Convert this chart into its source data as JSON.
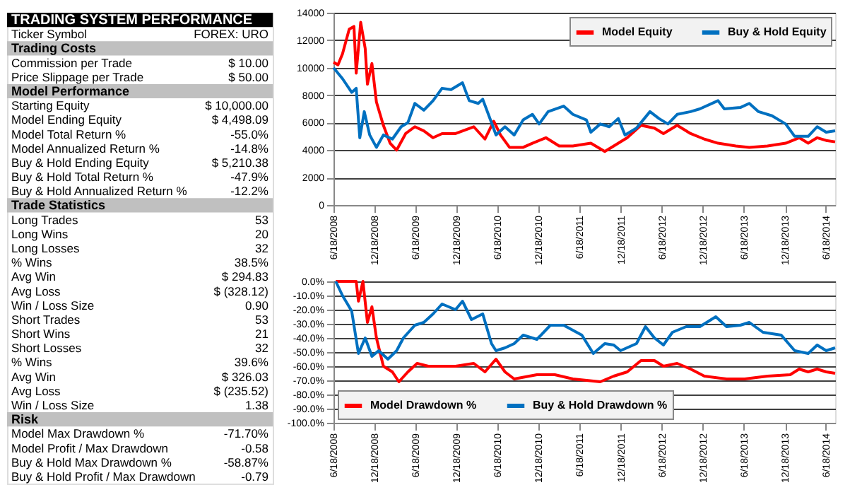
{
  "chart_data": [
    {
      "type": "other",
      "title": "TRADING SYSTEM PERFORMANCE",
      "categories": [
        "Ticker Symbol",
        "Trading Costs",
        "Commission per Trade",
        "Price Slippage per Trade",
        "Model Performance",
        "Starting Equity",
        "Model Ending Equity",
        "Model Total Return %",
        "Model Annualized Return %",
        "Buy & Hold Ending Equity",
        "Buy & Hold Total Return %",
        "Buy & Hold Annualized Return %",
        "Trade Statistics",
        "Long Trades",
        "Long Wins",
        "Long Losses",
        "% Wins",
        "Avg Win",
        "Avg Loss",
        "Win / Loss Size",
        "Short Trades",
        "Short Wins",
        "Short Losses",
        "% Wins",
        "Avg Win",
        "Avg Loss",
        "Win / Loss Size",
        "Risk",
        "Model Max Drawdown %",
        "Model Profit / Max Drawdown",
        "Buy & Hold Max Drawdown %",
        "Buy & Hold Profit / Max Drawdown"
      ],
      "value_labels": [
        "FOREX: URO",
        null,
        "$ 10.00",
        "$ 50.00",
        null,
        "$ 10,000.00",
        "$ 4,498.09",
        "-55.0%",
        "-14.8%",
        "$ 5,210.38",
        "-47.9%",
        "-12.2%",
        null,
        "53",
        "20",
        "32",
        "38.5%",
        "$ 294.83",
        "$ (328.12)",
        "0.90",
        "53",
        "21",
        "32",
        "39.6%",
        "$ 326.03",
        "$ (235.52)",
        "1.38",
        null,
        "-71.70%",
        "-0.58",
        "-58.87%",
        "-0.79"
      ]
    },
    {
      "type": "line",
      "xlim": [
        "2008-06-18",
        "2014-07-29"
      ],
      "ylim": [
        0,
        14000
      ],
      "yticks": [
        0,
        2000,
        4000,
        6000,
        8000,
        10000,
        12000,
        14000
      ],
      "xticks": [
        {
          "value": "2008-06-18",
          "label": "6/18/2008"
        },
        {
          "value": "2008-12-18",
          "label": "12/18/2008"
        },
        {
          "value": "2009-06-18",
          "label": "6/18/2009"
        },
        {
          "value": "2009-12-18",
          "label": "12/18/2009"
        },
        {
          "value": "2010-06-18",
          "label": "6/18/2010"
        },
        {
          "value": "2010-12-18",
          "label": "12/18/2010"
        },
        {
          "value": "2011-06-18",
          "label": "6/18/2011"
        },
        {
          "value": "2011-12-18",
          "label": "12/18/2011"
        },
        {
          "value": "2012-06-18",
          "label": "6/18/2012"
        },
        {
          "value": "2012-12-18",
          "label": "12/18/2012"
        },
        {
          "value": "2013-06-18",
          "label": "6/18/2013"
        },
        {
          "value": "2013-12-18",
          "label": "12/18/2013"
        },
        {
          "value": "2014-06-18",
          "label": "6/18/2014"
        }
      ],
      "grid": "y",
      "legend": "top right",
      "series": [
        {
          "name": "Model Equity",
          "color": "#ff0000",
          "x": [
            "2008-06-18",
            "2008-07-08",
            "2008-07-28",
            "2008-08-27",
            "2008-09-17",
            "2008-09-27",
            "2008-10-17",
            "2008-11-06",
            "2008-11-16",
            "2008-12-06",
            "2008-12-26",
            "2009-01-26",
            "2009-02-25",
            "2009-03-26",
            "2009-05-05",
            "2009-06-15",
            "2009-07-25",
            "2009-09-04",
            "2009-10-14",
            "2009-12-13",
            "2010-03-04",
            "2010-04-23",
            "2010-06-01",
            "2010-07-01",
            "2010-08-10",
            "2010-10-10",
            "2010-11-20",
            "2011-01-19",
            "2011-03-19",
            "2011-05-19",
            "2011-08-07",
            "2011-10-08",
            "2011-11-17",
            "2012-01-16",
            "2012-03-17",
            "2012-05-16",
            "2012-06-25",
            "2012-08-25",
            "2012-10-24",
            "2012-12-24",
            "2013-02-23",
            "2013-05-13",
            "2013-07-12",
            "2013-10-01",
            "2013-12-21",
            "2014-02-19",
            "2014-03-31",
            "2014-05-10",
            "2014-06-19",
            "2014-07-29"
          ],
          "values": [
            10400,
            10200,
            11000,
            12800,
            13000,
            9600,
            13300,
            11400,
            8800,
            10300,
            7500,
            5800,
            4500,
            4000,
            5200,
            5700,
            5400,
            4900,
            5200,
            5200,
            5700,
            4800,
            6100,
            5100,
            4200,
            4200,
            4500,
            4900,
            4300,
            4300,
            4500,
            3900,
            4300,
            4900,
            5800,
            5600,
            5200,
            5800,
            5200,
            4800,
            4500,
            4300,
            4200,
            4300,
            4500,
            4900,
            4500,
            4900,
            4700,
            4600
          ]
        },
        {
          "name": "Buy & Hold Equity",
          "color": "#0070c0",
          "x": [
            "2008-06-18",
            "2008-07-28",
            "2008-09-07",
            "2008-09-27",
            "2008-10-13",
            "2008-11-02",
            "2008-11-26",
            "2008-12-26",
            "2009-01-26",
            "2009-03-07",
            "2009-04-15",
            "2009-05-15",
            "2009-06-15",
            "2009-07-25",
            "2009-09-04",
            "2009-10-14",
            "2009-11-23",
            "2010-01-13",
            "2010-02-12",
            "2010-03-24",
            "2010-04-13",
            "2010-05-22",
            "2010-06-11",
            "2010-07-21",
            "2010-08-31",
            "2010-10-10",
            "2010-11-20",
            "2010-12-20",
            "2011-01-29",
            "2011-04-08",
            "2011-05-19",
            "2011-07-18",
            "2011-08-07",
            "2011-09-18",
            "2011-10-28",
            "2011-12-07",
            "2012-01-06",
            "2012-02-26",
            "2012-04-26",
            "2012-06-05",
            "2012-07-15",
            "2012-08-25",
            "2012-10-24",
            "2012-12-04",
            "2013-02-23",
            "2013-03-23",
            "2013-06-02",
            "2013-07-12",
            "2013-08-22",
            "2013-10-21",
            "2013-12-21",
            "2014-01-30",
            "2014-03-31",
            "2014-05-10",
            "2014-06-19",
            "2014-07-29"
          ],
          "values": [
            10000,
            9200,
            8200,
            8500,
            4900,
            6800,
            5100,
            4200,
            5100,
            4800,
            5700,
            6000,
            7400,
            6900,
            7600,
            8500,
            8400,
            8900,
            7600,
            7400,
            7700,
            6000,
            5100,
            5700,
            5100,
            6200,
            6600,
            5900,
            6800,
            7200,
            6600,
            6200,
            5300,
            5900,
            5700,
            6300,
            5100,
            5600,
            6800,
            6300,
            5900,
            6600,
            6800,
            7000,
            7600,
            7000,
            7100,
            7400,
            6800,
            6500,
            5900,
            5000,
            5000,
            5700,
            5300,
            5400
          ]
        }
      ]
    },
    {
      "type": "line",
      "xlim": [
        "2008-06-18",
        "2014-07-29"
      ],
      "ylim": [
        -100,
        0
      ],
      "yticks": [
        {
          "value": -100,
          "label": "-100.0%"
        },
        {
          "value": -90,
          "label": "-90.0%"
        },
        {
          "value": -80,
          "label": "-80.0%"
        },
        {
          "value": -70,
          "label": "-70.0%"
        },
        {
          "value": -60,
          "label": "-60.0%"
        },
        {
          "value": -50,
          "label": "-50.0%"
        },
        {
          "value": -40,
          "label": "-40.0%"
        },
        {
          "value": -30,
          "label": "-30.0%"
        },
        {
          "value": -20,
          "label": "-20.0%"
        },
        {
          "value": -10,
          "label": "-10.0%"
        },
        {
          "value": 0,
          "label": "0.0%"
        }
      ],
      "xticks": [
        {
          "value": "2008-06-18",
          "label": "6/18/2008"
        },
        {
          "value": "2008-12-18",
          "label": "12/18/2008"
        },
        {
          "value": "2009-06-18",
          "label": "6/18/2009"
        },
        {
          "value": "2009-12-18",
          "label": "12/18/2009"
        },
        {
          "value": "2010-06-18",
          "label": "6/18/2010"
        },
        {
          "value": "2010-12-18",
          "label": "12/18/2010"
        },
        {
          "value": "2011-06-18",
          "label": "6/18/2011"
        },
        {
          "value": "2011-12-18",
          "label": "12/18/2011"
        },
        {
          "value": "2012-06-18",
          "label": "6/18/2012"
        },
        {
          "value": "2012-12-18",
          "label": "12/18/2012"
        },
        {
          "value": "2013-06-18",
          "label": "6/18/2013"
        },
        {
          "value": "2013-12-18",
          "label": "12/18/2013"
        },
        {
          "value": "2014-06-18",
          "label": "6/18/2014"
        }
      ],
      "grid": "y",
      "legend": "bottom left",
      "series": [
        {
          "name": "Model Drawdown %",
          "color": "#ff0000",
          "x": [
            "2008-06-28",
            "2008-09-27",
            "2008-10-07",
            "2008-10-27",
            "2008-11-16",
            "2008-12-06",
            "2008-12-26",
            "2009-01-26",
            "2009-03-07",
            "2009-04-05",
            "2009-05-15",
            "2009-06-25",
            "2009-08-14",
            "2009-10-14",
            "2009-12-13",
            "2010-03-04",
            "2010-04-23",
            "2010-06-11",
            "2010-07-21",
            "2010-08-31",
            "2010-12-10",
            "2011-02-28",
            "2011-05-19",
            "2011-09-18",
            "2011-11-17",
            "2012-01-16",
            "2012-03-17",
            "2012-05-16",
            "2012-06-25",
            "2012-08-25",
            "2012-10-24",
            "2012-12-24",
            "2013-04-02",
            "2013-06-22",
            "2013-10-01",
            "2014-01-10",
            "2014-02-19",
            "2014-03-31",
            "2014-05-10",
            "2014-06-19",
            "2014-07-29"
          ],
          "values": [
            0,
            0,
            -14,
            0,
            -29,
            -18,
            -40,
            -60,
            -64,
            -71,
            -64,
            -58,
            -60,
            -60,
            -60,
            -58,
            -64,
            -55,
            -64,
            -69,
            -66,
            -66,
            -69,
            -71,
            -67,
            -64,
            -56,
            -56,
            -60,
            -58,
            -62,
            -67,
            -69,
            -69,
            -67,
            -66,
            -62,
            -64,
            -62,
            -64,
            -65
          ]
        },
        {
          "name": "Buy & Hold Drawdown %",
          "color": "#0070c0",
          "x": [
            "2008-06-28",
            "2008-07-28",
            "2008-09-07",
            "2008-10-07",
            "2008-11-06",
            "2008-12-06",
            "2009-01-05",
            "2009-02-15",
            "2009-03-26",
            "2009-04-25",
            "2009-06-15",
            "2009-07-25",
            "2009-09-04",
            "2009-10-14",
            "2009-12-13",
            "2010-01-13",
            "2010-02-22",
            "2010-04-13",
            "2010-05-22",
            "2010-06-11",
            "2010-07-21",
            "2010-08-31",
            "2010-10-10",
            "2010-12-10",
            "2011-02-08",
            "2011-04-08",
            "2011-06-28",
            "2011-08-18",
            "2011-10-08",
            "2011-11-17",
            "2011-12-17",
            "2012-02-26",
            "2012-04-06",
            "2012-05-16",
            "2012-06-25",
            "2012-08-04",
            "2012-10-04",
            "2012-12-04",
            "2013-02-13",
            "2013-04-02",
            "2013-06-02",
            "2013-07-12",
            "2013-09-11",
            "2013-12-01",
            "2014-01-30",
            "2014-03-31",
            "2014-05-10",
            "2014-06-19",
            "2014-07-29"
          ],
          "values": [
            0,
            -10,
            -21,
            -51,
            -40,
            -53,
            -49,
            -55,
            -49,
            -40,
            -31,
            -29,
            -23,
            -16,
            -20,
            -14,
            -27,
            -23,
            -44,
            -49,
            -47,
            -44,
            -38,
            -41,
            -31,
            -31,
            -38,
            -51,
            -44,
            -45,
            -49,
            -44,
            -32,
            -40,
            -45,
            -36,
            -32,
            -32,
            -25,
            -32,
            -31,
            -29,
            -36,
            -38,
            -49,
            -51,
            -45,
            -49,
            -47
          ]
        }
      ]
    }
  ]
}
